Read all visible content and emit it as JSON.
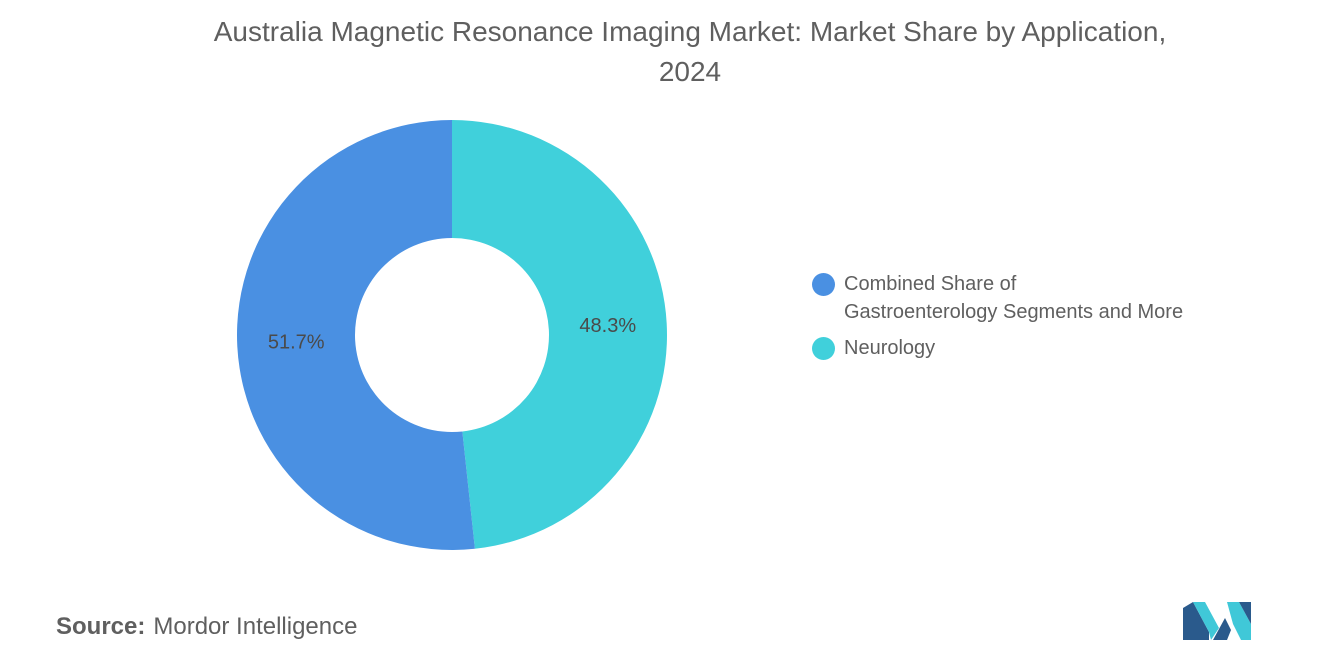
{
  "title_lines": [
    "Australia Magnetic Resonance Imaging Market: Market Share by Application,",
    "2024"
  ],
  "chart_data": {
    "type": "pie",
    "style": "donut",
    "title": "Australia Magnetic Resonance Imaging Market: Market Share by Application, 2024",
    "unit": "%",
    "slices": [
      {
        "name": "Neurology",
        "value": 48.3,
        "label": "48.3%",
        "color": "#40d0db"
      },
      {
        "name": "Combined Share of Gastroenterology Segments and More",
        "value": 51.7,
        "label": "51.7%",
        "color": "#4a90e2"
      }
    ],
    "legend": {
      "position": "right",
      "items": [
        {
          "label_lines": [
            "Combined Share of",
            "Gastroenterology Segments and More"
          ],
          "color": "#4a90e2"
        },
        {
          "label_lines": [
            "Neurology"
          ],
          "color": "#40d0db"
        }
      ]
    }
  },
  "source": {
    "label": "Source:",
    "value": "Mordor Intelligence"
  },
  "logo": {
    "icon": "mordor-intelligence-logo-icon",
    "colors": [
      "#2a5a8c",
      "#40c8d8"
    ]
  }
}
